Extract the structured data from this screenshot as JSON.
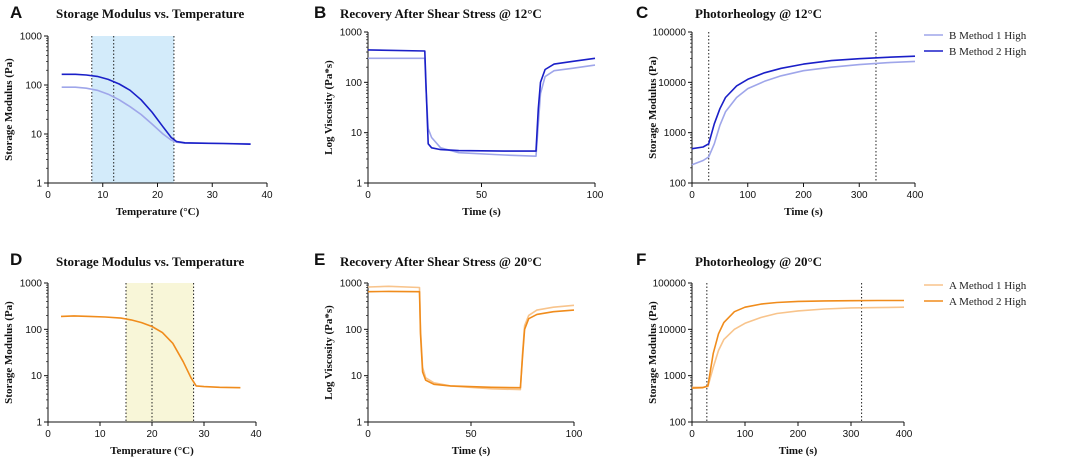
{
  "colors": {
    "blue_light": "#9fa6ea",
    "blue_dark": "#1a1fc8",
    "orange_light": "#f8c48c",
    "orange_dark": "#f08c1c",
    "band_blue": "#d3ebfa",
    "band_yellow": "#f8f6d8"
  },
  "legends": [
    {
      "items": [
        "B Method 1 High",
        "B Method 2 High"
      ]
    },
    {
      "items": [
        "A Method 1 High",
        "A Method 2 High"
      ]
    }
  ],
  "chart_data": [
    {
      "panel": "A",
      "type": "line",
      "title": "Storage Modulus vs. Temperature",
      "xlabel": "Temperature (°C)",
      "ylabel": "Storage Modulus (Pa)",
      "xlim": [
        0,
        40
      ],
      "ylim": [
        1,
        1000
      ],
      "yscale": "log",
      "xticks": [
        "0",
        "10",
        "20",
        "30",
        "40"
      ],
      "yticks": [
        "1",
        "10",
        "100",
        "1000"
      ],
      "shaded_band": [
        8,
        23
      ],
      "dotted_lines": [
        8,
        12,
        23
      ],
      "series": [
        {
          "name": "B Method 1 High",
          "color": "blue_light",
          "x": [
            2.5,
            5,
            7,
            9,
            11,
            13,
            15,
            17,
            19,
            21,
            22.5,
            23.5,
            25,
            28,
            32,
            37
          ],
          "y": [
            90,
            90,
            86,
            78,
            65,
            50,
            36,
            25,
            16,
            10,
            7.5,
            6.8,
            6.5,
            6.5,
            6.4,
            6.3
          ]
        },
        {
          "name": "B Method 2 High",
          "color": "blue_dark",
          "x": [
            2.5,
            5,
            7,
            9,
            11,
            13,
            15,
            17,
            19,
            21,
            22.5,
            23.5,
            25,
            28,
            32,
            37
          ],
          "y": [
            165,
            165,
            160,
            150,
            130,
            105,
            78,
            50,
            28,
            14,
            8.5,
            7,
            6.6,
            6.5,
            6.4,
            6.2
          ]
        }
      ]
    },
    {
      "panel": "B",
      "type": "line",
      "title": "Recovery After Shear Stress @ 12°C",
      "xlabel": "Time (s)",
      "ylabel": "Log Viscosity (Pa*s)",
      "xlim": [
        0,
        100
      ],
      "ylim": [
        1,
        1000
      ],
      "yscale": "log",
      "xticks": [
        "0",
        "50",
        "100"
      ],
      "yticks": [
        "1",
        "10",
        "100",
        "1000"
      ],
      "series": [
        {
          "name": "B Method 1 High",
          "color": "blue_light",
          "x": [
            0,
            25,
            25.5,
            26.5,
            28,
            32,
            40,
            60,
            74,
            75,
            76,
            78,
            82,
            90,
            100
          ],
          "y": [
            300,
            300,
            80,
            12,
            8,
            5,
            4,
            3.6,
            3.4,
            15,
            60,
            130,
            170,
            190,
            220
          ]
        },
        {
          "name": "B Method 2 High",
          "color": "blue_dark",
          "x": [
            0,
            25,
            25.5,
            26.5,
            28,
            32,
            40,
            60,
            74,
            75,
            76,
            78,
            82,
            90,
            100
          ],
          "y": [
            440,
            420,
            100,
            6,
            5,
            4.6,
            4.4,
            4.3,
            4.3,
            30,
            100,
            180,
            230,
            260,
            300
          ]
        }
      ]
    },
    {
      "panel": "C",
      "type": "line",
      "title": "Photorheology @ 12°C",
      "xlabel": "Time (s)",
      "ylabel": "Storage Modulus (Pa)",
      "xlim": [
        0,
        400
      ],
      "ylim": [
        100,
        100000
      ],
      "yscale": "log",
      "xticks": [
        "0",
        "100",
        "200",
        "300",
        "400"
      ],
      "yticks": [
        "100",
        "1000",
        "10000",
        "100000"
      ],
      "dotted_lines": [
        30,
        330
      ],
      "series": [
        {
          "name": "B Method 1 High",
          "color": "blue_light",
          "x": [
            0,
            20,
            30,
            40,
            50,
            60,
            80,
            100,
            130,
            160,
            200,
            250,
            300,
            350,
            400
          ],
          "y": [
            230,
            280,
            330,
            600,
            1400,
            2600,
            5000,
            7500,
            10500,
            13500,
            17000,
            20000,
            22500,
            24500,
            26000
          ]
        },
        {
          "name": "B Method 2 High",
          "color": "blue_dark",
          "x": [
            0,
            20,
            30,
            40,
            50,
            60,
            80,
            100,
            130,
            160,
            200,
            250,
            300,
            350,
            400
          ],
          "y": [
            480,
            520,
            600,
            1500,
            3000,
            5000,
            8500,
            11500,
            15500,
            19000,
            23000,
            27000,
            29500,
            31500,
            33000
          ]
        }
      ]
    },
    {
      "panel": "D",
      "type": "line",
      "title": "Storage Modulus vs. Temperature",
      "xlabel": "Temperature (°C)",
      "ylabel": "Storage Modulus (Pa)",
      "xlim": [
        0,
        40
      ],
      "ylim": [
        1,
        1000
      ],
      "yscale": "log",
      "xticks": [
        "0",
        "10",
        "20",
        "30",
        "40"
      ],
      "yticks": [
        "1",
        "10",
        "100",
        "1000"
      ],
      "shaded_band": [
        15,
        28
      ],
      "dotted_lines": [
        15,
        20,
        28
      ],
      "series": [
        {
          "name": "A Method 2 High",
          "color": "orange_dark",
          "x": [
            2.5,
            5,
            8,
            11,
            14,
            16,
            18,
            20,
            22,
            24,
            26,
            27.5,
            28.5,
            30,
            33,
            37
          ],
          "y": [
            190,
            195,
            190,
            185,
            175,
            160,
            140,
            115,
            85,
            50,
            20,
            9,
            6,
            5.8,
            5.6,
            5.5
          ]
        }
      ]
    },
    {
      "panel": "E",
      "type": "line",
      "title": "Recovery After Shear Stress @ 20°C",
      "xlabel": "Time (s)",
      "ylabel": "Log Viscosity (Pa*s)",
      "xlim": [
        0,
        100
      ],
      "ylim": [
        1,
        1000
      ],
      "yscale": "log",
      "xticks": [
        "0",
        "50",
        "100"
      ],
      "yticks": [
        "1",
        "10",
        "100",
        "1000"
      ],
      "series": [
        {
          "name": "A Method 1 High",
          "color": "orange_light",
          "x": [
            0,
            10,
            25,
            25.5,
            26.5,
            28,
            32,
            40,
            60,
            74,
            75,
            76,
            78,
            82,
            90,
            100
          ],
          "y": [
            820,
            850,
            800,
            100,
            15,
            9,
            7,
            6,
            5.2,
            5,
            30,
            120,
            200,
            260,
            300,
            330
          ]
        },
        {
          "name": "A Method 2 High",
          "color": "orange_dark",
          "x": [
            0,
            10,
            25,
            25.5,
            26.5,
            28,
            32,
            40,
            60,
            74,
            75,
            76,
            78,
            82,
            90,
            100
          ],
          "y": [
            650,
            660,
            650,
            80,
            12,
            8,
            6.5,
            6,
            5.6,
            5.5,
            25,
            100,
            170,
            210,
            240,
            260
          ]
        }
      ]
    },
    {
      "panel": "F",
      "type": "line",
      "title": "Photorheology @ 20°C",
      "xlabel": "Time (s)",
      "ylabel": "Storage Modulus (Pa)",
      "xlim": [
        0,
        400
      ],
      "ylim": [
        100,
        100000
      ],
      "yscale": "log",
      "xticks": [
        "0",
        "100",
        "200",
        "300",
        "400"
      ],
      "yticks": [
        "100",
        "1000",
        "10000",
        "100000"
      ],
      "dotted_lines": [
        28,
        320
      ],
      "series": [
        {
          "name": "A Method 1 High",
          "color": "orange_light",
          "x": [
            0,
            20,
            30,
            40,
            50,
            60,
            80,
            100,
            130,
            160,
            200,
            250,
            300,
            350,
            400
          ],
          "y": [
            560,
            560,
            580,
            1500,
            3500,
            6000,
            10000,
            13500,
            18000,
            22000,
            25000,
            27500,
            29000,
            29500,
            30000
          ]
        },
        {
          "name": "A Method 2 High",
          "color": "orange_dark",
          "x": [
            0,
            20,
            30,
            40,
            50,
            60,
            80,
            100,
            130,
            160,
            200,
            250,
            300,
            350,
            400
          ],
          "y": [
            540,
            550,
            600,
            3000,
            8000,
            14000,
            24000,
            30000,
            35000,
            38000,
            40000,
            41000,
            41500,
            42000,
            42000
          ]
        }
      ]
    }
  ]
}
